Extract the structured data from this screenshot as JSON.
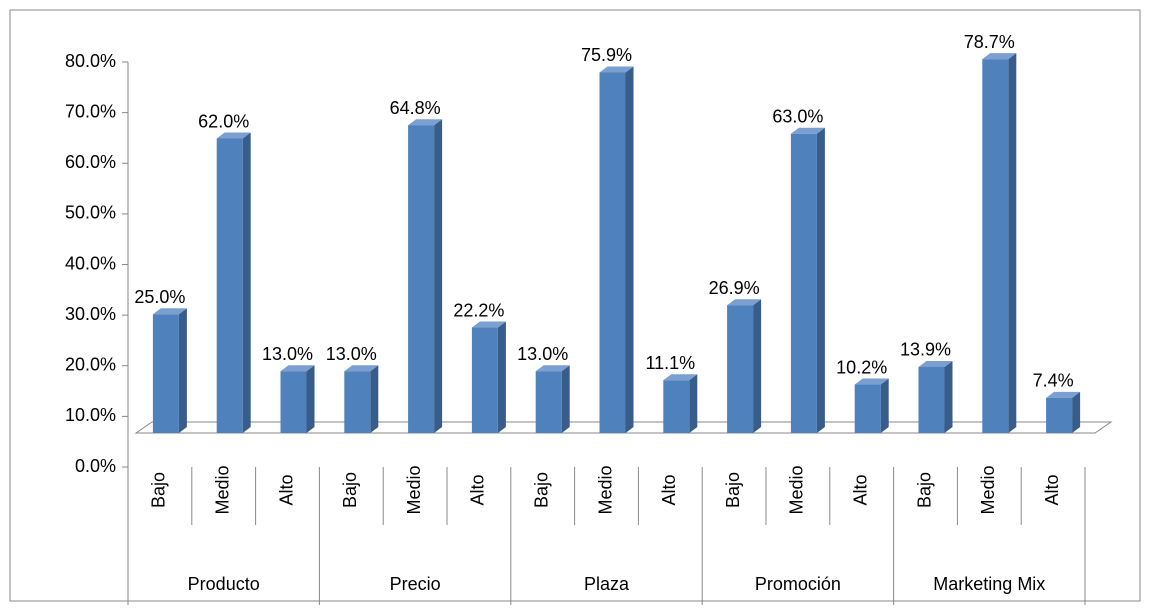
{
  "chart_data": {
    "type": "bar3d",
    "groups": [
      {
        "name": "Producto",
        "categories": [
          "Bajo",
          "Medio",
          "Alto"
        ]
      },
      {
        "name": "Precio",
        "categories": [
          "Bajo",
          "Medio",
          "Alto"
        ]
      },
      {
        "name": "Plaza",
        "categories": [
          "Bajo",
          "Medio",
          "Alto"
        ]
      },
      {
        "name": "Promoción",
        "categories": [
          "Bajo",
          "Medio",
          "Alto"
        ]
      },
      {
        "name": "Marketing Mix",
        "categories": [
          "Bajo",
          "Medio",
          "Alto"
        ]
      }
    ],
    "values": [
      25.0,
      62.0,
      13.0,
      13.0,
      64.8,
      22.2,
      13.0,
      75.9,
      11.1,
      26.9,
      63.0,
      10.2,
      13.9,
      78.7,
      7.4
    ],
    "value_labels": [
      "25.0%",
      "62.0%",
      "13.0%",
      "13.0%",
      "64.8%",
      "22.2%",
      "13.0%",
      "75.9%",
      "11.1%",
      "26.9%",
      "63.0%",
      "10.2%",
      "13.9%",
      "78.7%",
      "7.4%"
    ],
    "color": "#4f81bd",
    "ylim": [
      0,
      80
    ],
    "yticks": [
      {
        "value": 0,
        "label": "0.0%"
      },
      {
        "value": 10,
        "label": "10.0%"
      },
      {
        "value": 20,
        "label": "20.0%"
      },
      {
        "value": 30,
        "label": "30.0%"
      },
      {
        "value": 40,
        "label": "40.0%"
      },
      {
        "value": 50,
        "label": "50.0%"
      },
      {
        "value": 60,
        "label": "60.0%"
      },
      {
        "value": 70,
        "label": "70.0%"
      },
      {
        "value": 80,
        "label": "80.0%"
      }
    ]
  }
}
